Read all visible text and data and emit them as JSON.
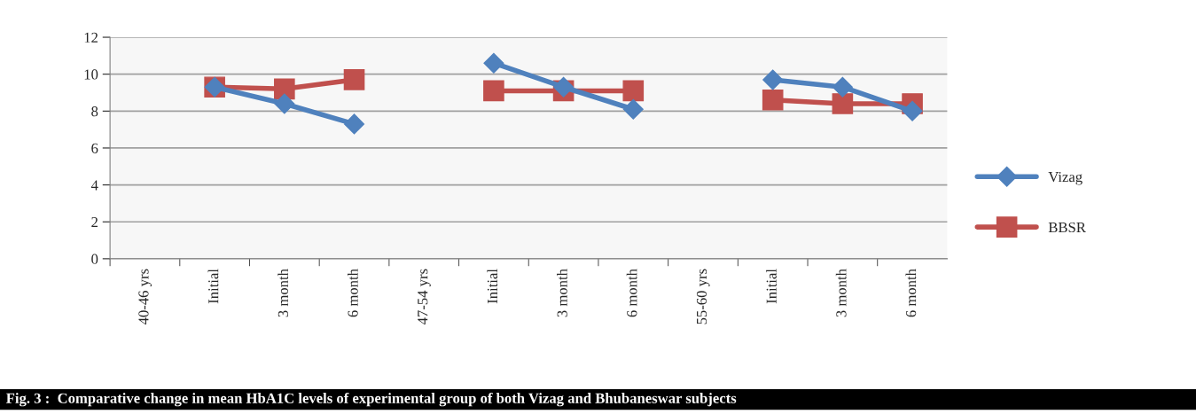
{
  "chart_data": {
    "type": "line",
    "categories": [
      "40-46 yrs",
      "Initial",
      "3 month",
      "6 month",
      "47-54 yrs",
      "Initial",
      "3 month",
      "6 month",
      "55-60 yrs",
      "Initial",
      "3 month",
      "6 month"
    ],
    "series": [
      {
        "name": "Vizag",
        "color": "#4f81bd",
        "marker": "diamond",
        "values": [
          null,
          9.3,
          8.4,
          7.3,
          null,
          10.6,
          9.3,
          8.1,
          null,
          9.7,
          9.3,
          8.0
        ]
      },
      {
        "name": "BBSR",
        "color": "#c0504d",
        "marker": "square",
        "values": [
          null,
          9.3,
          9.2,
          9.7,
          null,
          9.1,
          9.1,
          9.1,
          null,
          8.6,
          8.4,
          8.4
        ]
      }
    ],
    "ylim": [
      0,
      12
    ],
    "yticks": [
      0,
      2,
      4,
      6,
      8,
      10,
      12
    ],
    "grid": "y",
    "legend": "right",
    "annotations": [
      "Fig. 3 :  Comparative change in mean HbA1C levels of experimental group of both Vizag and Bhubaneswar subjects"
    ]
  }
}
